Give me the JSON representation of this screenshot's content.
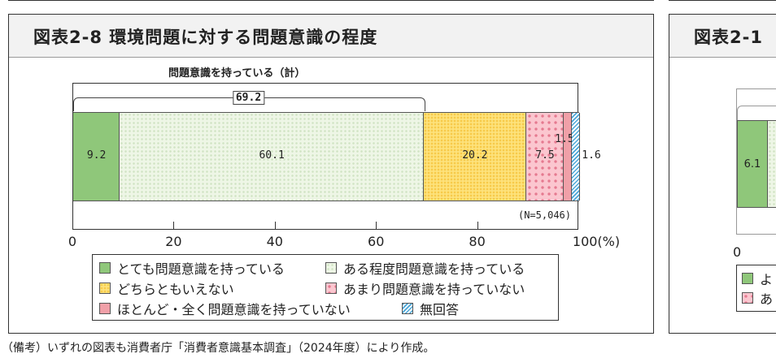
{
  "panel_left": {
    "title": "図表2-8 環境問題に対する問題意識の程度"
  },
  "panel_right": {
    "title": "図表2-1",
    "first_value": "6.1",
    "axis_zero": "0",
    "legend_partial": [
      "よ",
      "あ"
    ]
  },
  "chart_data": {
    "type": "bar",
    "orientation": "horizontal-stacked",
    "bracket_label": "問題意識を持っている（計）",
    "bracket_value": "69.2",
    "sample_note": "(N=5,046)",
    "series": [
      {
        "name": "とても問題意識を持っている",
        "value": 9.2,
        "label": "9.2",
        "color": "#8fc77a"
      },
      {
        "name": "ある程度問題意識を持っている",
        "value": 60.1,
        "label": "60.1",
        "color": "#eef6e6"
      },
      {
        "name": "どちらともいえない",
        "value": 20.2,
        "label": "20.2",
        "color": "#fde27c"
      },
      {
        "name": "あまり問題意識を持っていない",
        "value": 7.5,
        "label": "7.5",
        "color": "#fbc6cf"
      },
      {
        "name": "ほとんど・全く問題意識を持っていない",
        "value": 1.5,
        "label": "1.5",
        "color": "#f0a0a8"
      },
      {
        "name": "無回答",
        "value": 1.6,
        "label": "1.6",
        "color": "#4aa6d8"
      }
    ],
    "xlim": [
      0,
      100
    ],
    "xticks": [
      "0",
      "20",
      "40",
      "60",
      "80",
      "100(%)"
    ],
    "legend_position": "bottom"
  },
  "footer": "（備考）いずれの図表も消費者庁「消費者意識基本調査」（2024年度）により作成。"
}
